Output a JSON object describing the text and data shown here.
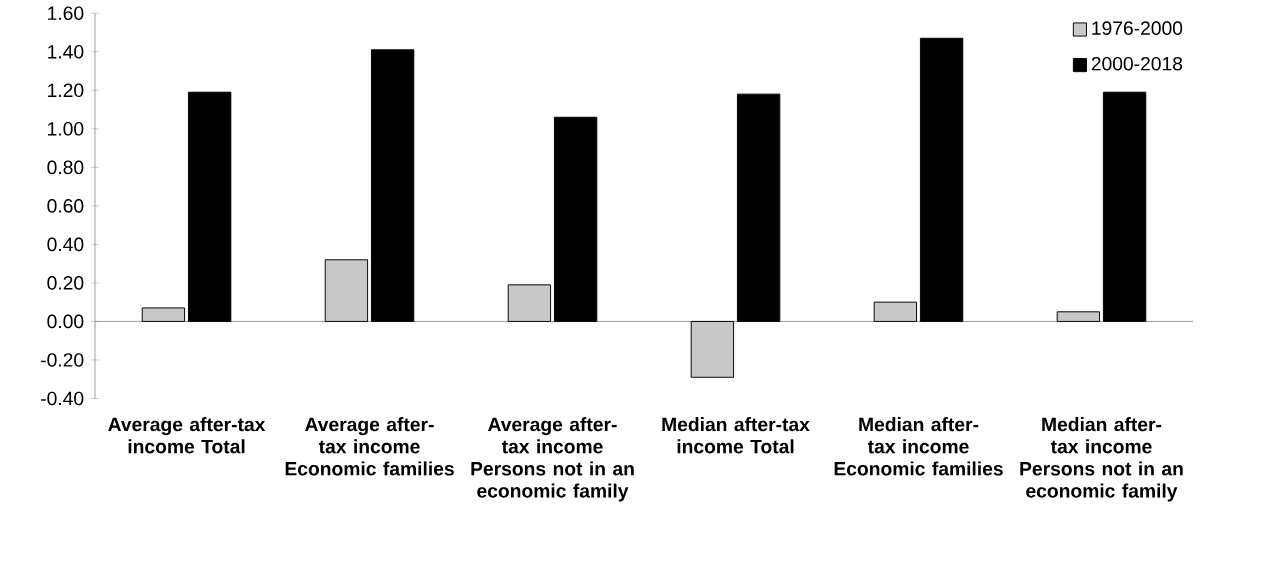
{
  "chart_data": {
    "type": "bar",
    "categories": [
      "Average after-tax income Total",
      "Average after-tax income Economic families",
      "Average after-tax income Persons not in an economic family",
      "Median after-tax income Total",
      "Median after-tax income Economic families",
      "Median after-tax income Persons not in an economic family"
    ],
    "series": [
      {
        "name": "1976-2000",
        "color": "#c8c8c8",
        "values": [
          0.07,
          0.32,
          0.19,
          -0.29,
          0.1,
          0.05
        ]
      },
      {
        "name": "2000-2018",
        "color": "#000000",
        "values": [
          1.19,
          1.41,
          1.06,
          1.18,
          1.47,
          1.19
        ]
      }
    ],
    "ylim": [
      -0.4,
      1.6
    ],
    "yticks": [
      {
        "value": -0.4,
        "label": "-0.40"
      },
      {
        "value": -0.2,
        "label": "-0.20"
      },
      {
        "value": 0,
        "label": "0.00"
      },
      {
        "value": 0.2,
        "label": "0.20"
      },
      {
        "value": 0.4,
        "label": "0.40"
      },
      {
        "value": 0.6,
        "label": "0.60"
      },
      {
        "value": 0.8,
        "label": "0.80"
      },
      {
        "value": 1.0,
        "label": "1.00"
      },
      {
        "value": 1.2,
        "label": "1.20"
      },
      {
        "value": 1.4,
        "label": "1.40"
      },
      {
        "value": 1.6,
        "label": "1.60"
      }
    ],
    "legend": "top right"
  }
}
